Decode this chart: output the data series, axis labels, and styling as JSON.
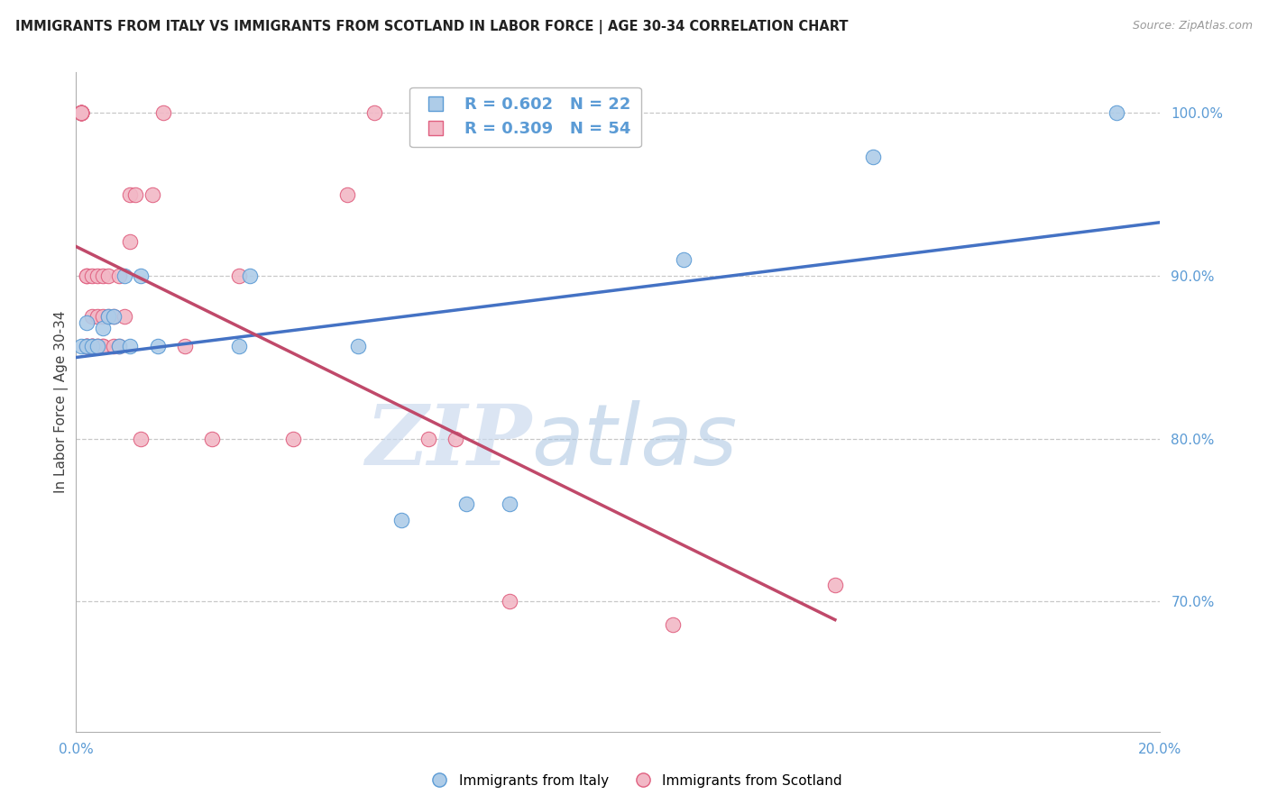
{
  "title": "IMMIGRANTS FROM ITALY VS IMMIGRANTS FROM SCOTLAND IN LABOR FORCE | AGE 30-34 CORRELATION CHART",
  "source": "Source: ZipAtlas.com",
  "ylabel": "In Labor Force | Age 30-34",
  "x_min": 0.0,
  "x_max": 0.2,
  "y_min": 0.62,
  "y_max": 1.025,
  "right_yticks": [
    0.7,
    0.8,
    0.9,
    1.0
  ],
  "right_yticklabels": [
    "70.0%",
    "80.0%",
    "90.0%",
    "100.0%"
  ],
  "xticks": [
    0.0,
    0.04,
    0.08,
    0.12,
    0.16,
    0.2
  ],
  "xticklabels": [
    "0.0%",
    "",
    "",
    "",
    "",
    "20.0%"
  ],
  "watermark_zip": "ZIP",
  "watermark_atlas": "atlas",
  "italy_color": "#aecce8",
  "italy_edge_color": "#5b9bd5",
  "scotland_color": "#f2b8c6",
  "scotland_edge_color": "#e06080",
  "italy_line_color": "#4472c4",
  "scotland_line_color": "#c0496a",
  "italy_R": 0.602,
  "italy_N": 22,
  "scotland_R": 0.309,
  "scotland_N": 54,
  "italy_x": [
    0.001,
    0.002,
    0.002,
    0.003,
    0.004,
    0.005,
    0.006,
    0.007,
    0.008,
    0.009,
    0.01,
    0.012,
    0.015,
    0.03,
    0.032,
    0.052,
    0.06,
    0.072,
    0.08,
    0.112,
    0.147,
    0.192
  ],
  "italy_y": [
    0.857,
    0.857,
    0.871,
    0.857,
    0.857,
    0.868,
    0.875,
    0.875,
    0.857,
    0.9,
    0.857,
    0.9,
    0.857,
    0.857,
    0.9,
    0.857,
    0.75,
    0.76,
    0.76,
    0.91,
    0.973,
    1.0
  ],
  "scotland_x": [
    0.001,
    0.001,
    0.001,
    0.001,
    0.001,
    0.001,
    0.001,
    0.001,
    0.001,
    0.001,
    0.002,
    0.002,
    0.002,
    0.002,
    0.002,
    0.002,
    0.003,
    0.003,
    0.003,
    0.003,
    0.003,
    0.003,
    0.004,
    0.004,
    0.004,
    0.004,
    0.005,
    0.005,
    0.005,
    0.005,
    0.006,
    0.006,
    0.007,
    0.007,
    0.008,
    0.008,
    0.009,
    0.01,
    0.01,
    0.011,
    0.012,
    0.014,
    0.016,
    0.02,
    0.025,
    0.03,
    0.04,
    0.05,
    0.055,
    0.065,
    0.07,
    0.08,
    0.11,
    0.14
  ],
  "scotland_y": [
    1.0,
    1.0,
    1.0,
    1.0,
    1.0,
    1.0,
    1.0,
    1.0,
    1.0,
    1.0,
    0.857,
    0.857,
    0.857,
    0.857,
    0.9,
    0.9,
    0.857,
    0.857,
    0.857,
    0.857,
    0.875,
    0.9,
    0.857,
    0.857,
    0.875,
    0.9,
    0.857,
    0.875,
    0.857,
    0.9,
    0.875,
    0.9,
    0.857,
    0.875,
    0.9,
    0.857,
    0.875,
    0.921,
    0.95,
    0.95,
    0.8,
    0.95,
    1.0,
    0.857,
    0.8,
    0.9,
    0.8,
    0.95,
    1.0,
    0.8,
    0.8,
    0.7,
    0.686,
    0.71
  ],
  "background_color": "#ffffff",
  "grid_color": "#c8c8c8",
  "title_fontsize": 10.5,
  "legend_fontsize": 13,
  "axis_label_color": "#5b9bd5",
  "tick_label_color": "#5b9bd5",
  "ylabel_color": "#404040",
  "spine_color": "#b0b0b0"
}
